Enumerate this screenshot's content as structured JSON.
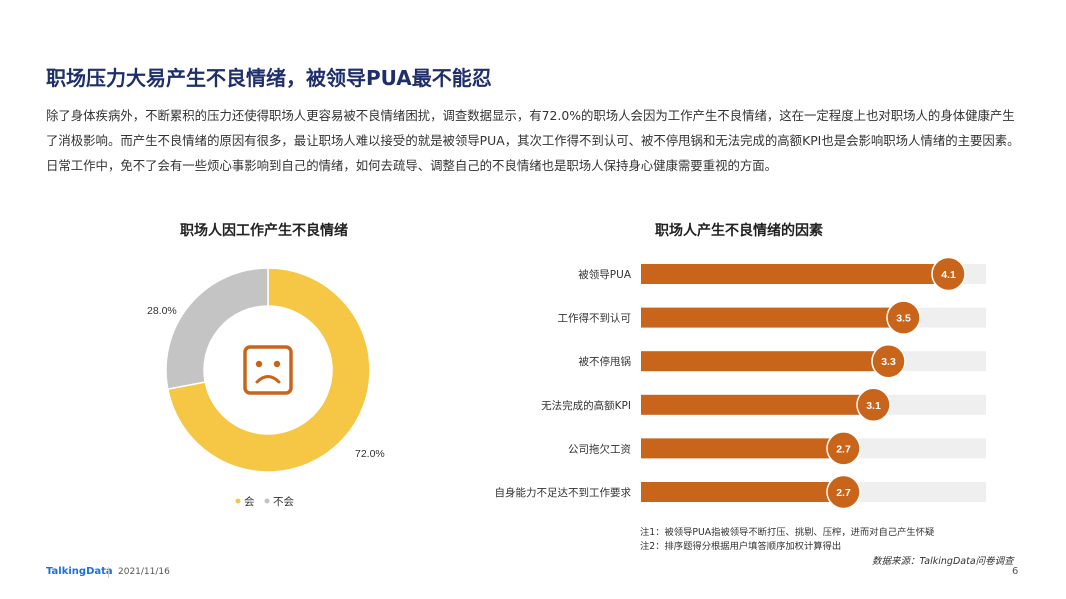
{
  "slide": {
    "title": "职场压力大易产生不良情绪，被领导PUA最不能忍",
    "paragraph": [
      "除了身体疾病外，不断累积的压力还使得职场人更容易被不良情绪困扰，调查数据显示，有72.0%的职场人会因为工作产生不良情绪，这在一定程度上也对职场人的身体健康产生",
      "了消极影响。而产生不良情绪的原因有很多，最让职场人难以接受的就是被领导PUA，其次工作得不到认可、被不停甩锅和无法完成的高额KPI也是会影响职场人情绪的主要因素。",
      "日常工作中，免不了会有一些烦心事影响到自己的情绪，如何去疏导、调整自己的不良情绪也是职场人保持身心健康需要重视的方面。"
    ],
    "notes": [
      "注1：被领导PUA指被领导不断打压、挑剔、压榨，进而对自己产生怀疑",
      "注2：排序题得分根据用户填答顺序加权计算得出"
    ],
    "source": "数据来源：TalkingData问卷调查",
    "footer": {
      "logo": "TalkingData",
      "date": "2021/11/16",
      "page": "6"
    },
    "icon": "sad-face-icon"
  },
  "chart_data": [
    {
      "type": "pie",
      "title": "职场人因工作产生不良情绪",
      "slices": [
        {
          "name": "会",
          "value": 72.0,
          "label": "72.0%",
          "color": "#f6c744"
        },
        {
          "name": "不会",
          "value": 28.0,
          "label": "28.0%",
          "color": "#c4c4c4"
        }
      ],
      "legend_position": "bottom",
      "donut": true
    },
    {
      "type": "bar",
      "orientation": "horizontal",
      "title": "职场人产生不良情绪的因素",
      "categories": [
        "被领导PUA",
        "工作得不到认可",
        "被不停甩锅",
        "无法完成的高额KPI",
        "公司拖欠工资",
        "自身能力不足达不到工作要求"
      ],
      "values": [
        4.1,
        3.5,
        3.3,
        3.1,
        2.7,
        2.7
      ],
      "value_labels": [
        "4.1",
        "3.5",
        "3.3",
        "3.1",
        "2.7",
        "2.7"
      ],
      "xlim": [
        0,
        4.6
      ],
      "colors": {
        "bar": "#c8651b",
        "track": "#efefef",
        "badge": "#c8651b"
      }
    }
  ]
}
